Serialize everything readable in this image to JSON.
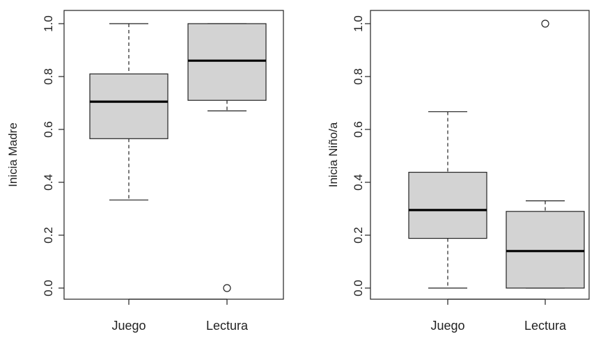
{
  "colors": {
    "box_fill": "#d3d3d3",
    "stroke": "#222222",
    "background": "#ffffff"
  },
  "chart_data": [
    {
      "type": "box",
      "ylabel": "Inicia Madre",
      "ylim": [
        0,
        1
      ],
      "yticks": [
        {
          "value": 0.0,
          "label": "0.0"
        },
        {
          "value": 0.2,
          "label": "0.2"
        },
        {
          "value": 0.4,
          "label": "0.4"
        },
        {
          "value": 0.6,
          "label": "0.6"
        },
        {
          "value": 0.8,
          "label": "0.8"
        },
        {
          "value": 1.0,
          "label": "1.0"
        }
      ],
      "categories": [
        "Juego",
        "Lectura"
      ],
      "boxes": [
        {
          "category": "Juego",
          "whisker_low": 0.333,
          "q1": 0.565,
          "median": 0.705,
          "q3": 0.81,
          "whisker_high": 1.0,
          "outliers": []
        },
        {
          "category": "Lectura",
          "whisker_low": 0.67,
          "q1": 0.71,
          "median": 0.86,
          "q3": 1.0,
          "whisker_high": 1.0,
          "outliers": [
            0.0
          ]
        }
      ],
      "grid": false
    },
    {
      "type": "box",
      "ylabel": "Inicia Niño/a",
      "ylim": [
        0,
        1
      ],
      "yticks": [
        {
          "value": 0.0,
          "label": "0.0"
        },
        {
          "value": 0.2,
          "label": "0.2"
        },
        {
          "value": 0.4,
          "label": "0.4"
        },
        {
          "value": 0.6,
          "label": "0.6"
        },
        {
          "value": 0.8,
          "label": "0.8"
        },
        {
          "value": 1.0,
          "label": "1.0"
        }
      ],
      "categories": [
        "Juego",
        "Lectura"
      ],
      "boxes": [
        {
          "category": "Juego",
          "whisker_low": 0.0,
          "q1": 0.188,
          "median": 0.295,
          "q3": 0.438,
          "whisker_high": 0.667,
          "outliers": []
        },
        {
          "category": "Lectura",
          "whisker_low": 0.0,
          "q1": 0.0,
          "median": 0.14,
          "q3": 0.29,
          "whisker_high": 0.33,
          "outliers": [
            1.0
          ]
        }
      ],
      "grid": false
    }
  ]
}
